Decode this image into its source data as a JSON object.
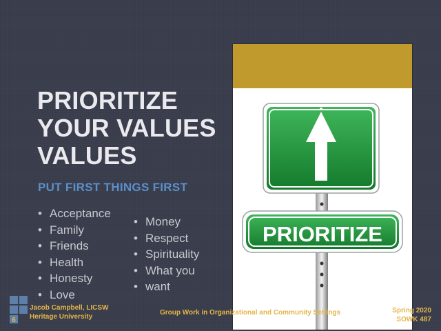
{
  "slide": {
    "title_lines": [
      "PRIORITIZE",
      "YOUR VALUES",
      "VALUES"
    ],
    "subtitle": "PUT FIRST THINGS FIRST",
    "list_left": [
      "Acceptance",
      "Family",
      "Friends",
      "Health",
      "Honesty",
      "Love"
    ],
    "list_right": [
      "Money",
      "Respect",
      "Spirituality",
      "What you",
      "want"
    ]
  },
  "image": {
    "sign_text": "PRIORITIZE",
    "icon": "up-arrow-sign-icon"
  },
  "footer": {
    "slide_number": "6",
    "author": "Jacob Campbell, LICSW",
    "institution": "Heritage University",
    "course_title": "Group Work in Organizational and Community Settings",
    "term": "Spring 2020",
    "course_code": "SOWK 487"
  },
  "colors": {
    "background": "#3a3d4c",
    "title": "#e9e9ee",
    "subtitle": "#5b8fc9",
    "footer": "#e4b648",
    "photo_band": "#c09a2c",
    "sign_green": "#1f9a3a"
  }
}
